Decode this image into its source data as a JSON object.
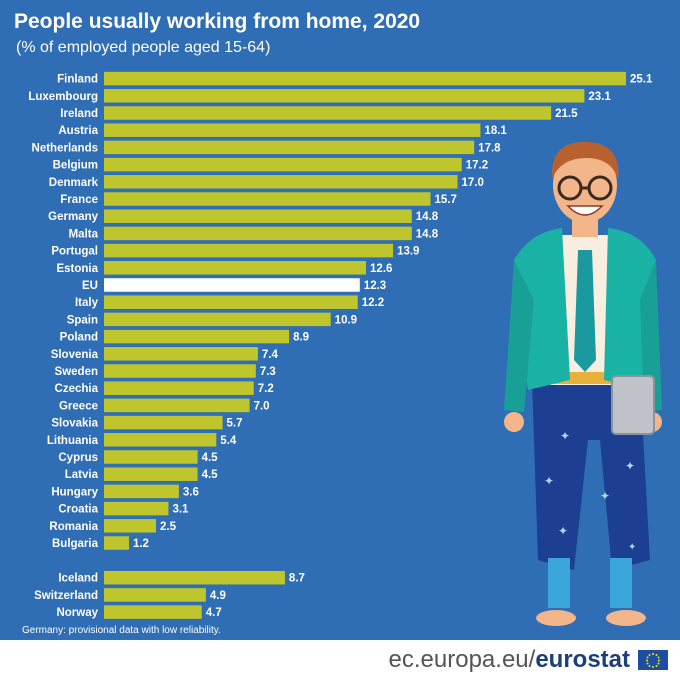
{
  "title": "People usually working from home, 2020",
  "subtitle": "(% of employed people aged 15-64)",
  "footnote": "Germany: provisional data with low reliability.",
  "footer": {
    "site_prefix": "ec.europa.eu/",
    "site_brand": "eurostat"
  },
  "colors": {
    "background": "#2f6db5",
    "bar": "#bfc62d",
    "highlight_bar": "#ffffff",
    "text": "#ffffff"
  },
  "chart_data": {
    "type": "bar",
    "orientation": "horizontal",
    "title": "People usually working from home, 2020",
    "subtitle": "(% of employed people aged 15-64)",
    "xlabel": "",
    "ylabel": "",
    "xlim": [
      0,
      25.1
    ],
    "highlight": "EU",
    "groups": [
      {
        "categories": [
          "Finland",
          "Luxembourg",
          "Ireland",
          "Austria",
          "Netherlands",
          "Belgium",
          "Denmark",
          "France",
          "Germany",
          "Malta",
          "Portugal",
          "Estonia",
          "EU",
          "Italy",
          "Spain",
          "Poland",
          "Slovenia",
          "Sweden",
          "Czechia",
          "Greece",
          "Slovakia",
          "Lithuania",
          "Cyprus",
          "Latvia",
          "Hungary",
          "Croatia",
          "Romania",
          "Bulgaria"
        ],
        "values": [
          25.1,
          23.1,
          21.5,
          18.1,
          17.8,
          17.2,
          17.0,
          15.7,
          14.8,
          14.8,
          13.9,
          12.6,
          12.3,
          12.2,
          10.9,
          8.9,
          7.4,
          7.3,
          7.2,
          7.0,
          5.7,
          5.4,
          4.5,
          4.5,
          3.6,
          3.1,
          2.5,
          1.2
        ],
        "labels": [
          "25.1",
          "23.1",
          "21.5",
          "18.1",
          "17.8",
          "17.2",
          "17.0",
          "15.7",
          "14.8",
          "14.8",
          "13.9",
          "12.6",
          "12.3",
          "12.2",
          "10.9",
          "8.9",
          "7.4",
          "7.3",
          "7.2",
          "7.0",
          "5.7",
          "5.4",
          "4.5",
          "4.5",
          "3.6",
          "3.1",
          "2.5",
          "1.2"
        ]
      },
      {
        "categories": [
          "Iceland",
          "Switzerland",
          "Norway"
        ],
        "values": [
          8.7,
          4.9,
          4.7
        ],
        "labels": [
          "8.7",
          "4.9",
          "4.7"
        ]
      }
    ]
  }
}
